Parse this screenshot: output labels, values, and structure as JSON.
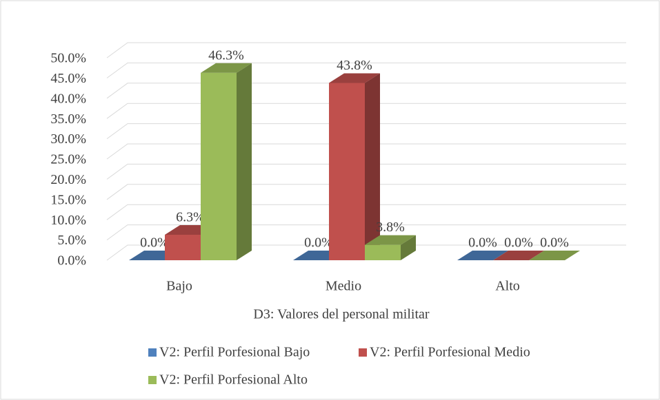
{
  "chart_data": {
    "type": "bar3d",
    "x_label": "D3: Valores del personal militar",
    "categories": [
      "Bajo",
      "Medio",
      "Alto"
    ],
    "series": [
      {
        "name": "V2: Perfil Porfesional Bajo",
        "color": "#4f81bd",
        "values": [
          0,
          0,
          0
        ],
        "value_labels": [
          "0.0%",
          "0.0%",
          "0.0%"
        ]
      },
      {
        "name": "V2: Perfil Porfesional Medio",
        "color": "#c0504d",
        "values": [
          6.3,
          43.8,
          0
        ],
        "value_labels": [
          "6.3%",
          "43.8%",
          "0.0%"
        ]
      },
      {
        "name": "V2: Perfil Porfesional Alto",
        "color": "#9bbb59",
        "values": [
          46.3,
          3.8,
          0
        ],
        "value_labels": [
          "46.3%",
          "3.8%",
          "0.0%"
        ]
      }
    ],
    "ylim": [
      0,
      50
    ],
    "yticks": [
      {
        "value": 0,
        "label": "0.0%"
      },
      {
        "value": 5,
        "label": "5.0%"
      },
      {
        "value": 10,
        "label": "10.0%"
      },
      {
        "value": 15,
        "label": "15.0%"
      },
      {
        "value": 20,
        "label": "20.0%"
      },
      {
        "value": 25,
        "label": "25.0%"
      },
      {
        "value": 30,
        "label": "30.0%"
      },
      {
        "value": 35,
        "label": "35.0%"
      },
      {
        "value": 40,
        "label": "40.0%"
      },
      {
        "value": 45,
        "label": "45.0%"
      },
      {
        "value": 50,
        "label": "50.0%"
      }
    ],
    "grid": true
  }
}
